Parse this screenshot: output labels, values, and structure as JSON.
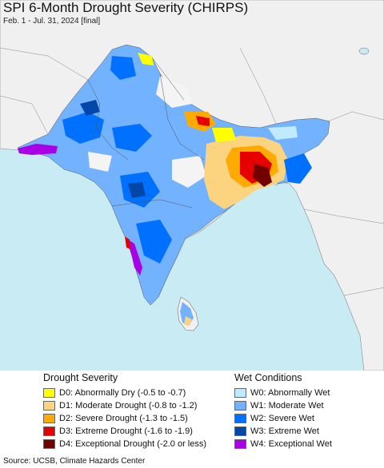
{
  "header": {
    "title": "SPI 6-Month Drought Severity (CHIRPS)",
    "subtitle": "Feb. 1 - Jul. 31, 2024 [final]"
  },
  "legend": {
    "drought_heading": "Drought Severity",
    "wet_heading": "Wet Conditions",
    "drought": [
      {
        "label": "D0: Abnormally Dry (-0.5 to -0.7)",
        "color": "#ffff00"
      },
      {
        "label": "D1: Moderate Drought (-0.8 to -1.2)",
        "color": "#fcd37f"
      },
      {
        "label": "D2: Severe Drought (-1.3 to -1.5)",
        "color": "#ffaa00"
      },
      {
        "label": "D3: Extreme Drought (-1.6 to -1.9)",
        "color": "#e60000"
      },
      {
        "label": "D4: Exceptional Drought (-2.0 or less)",
        "color": "#730000"
      }
    ],
    "wet": [
      {
        "label": "W0: Abnormally Wet",
        "color": "#bfeaff"
      },
      {
        "label": "W1: Moderate Wet",
        "color": "#73b2ff"
      },
      {
        "label": "W2: Severe Wet",
        "color": "#0070ff"
      },
      {
        "label": "W3: Extreme Wet",
        "color": "#0047a8"
      },
      {
        "label": "W4: Exceptional Wet",
        "color": "#a900e6"
      }
    ]
  },
  "footer": {
    "source": "Source: UCSB, Climate Hazards Center"
  },
  "map": {
    "ocean_color": "#c9ecf4",
    "land_color": "#f0f0f0"
  }
}
